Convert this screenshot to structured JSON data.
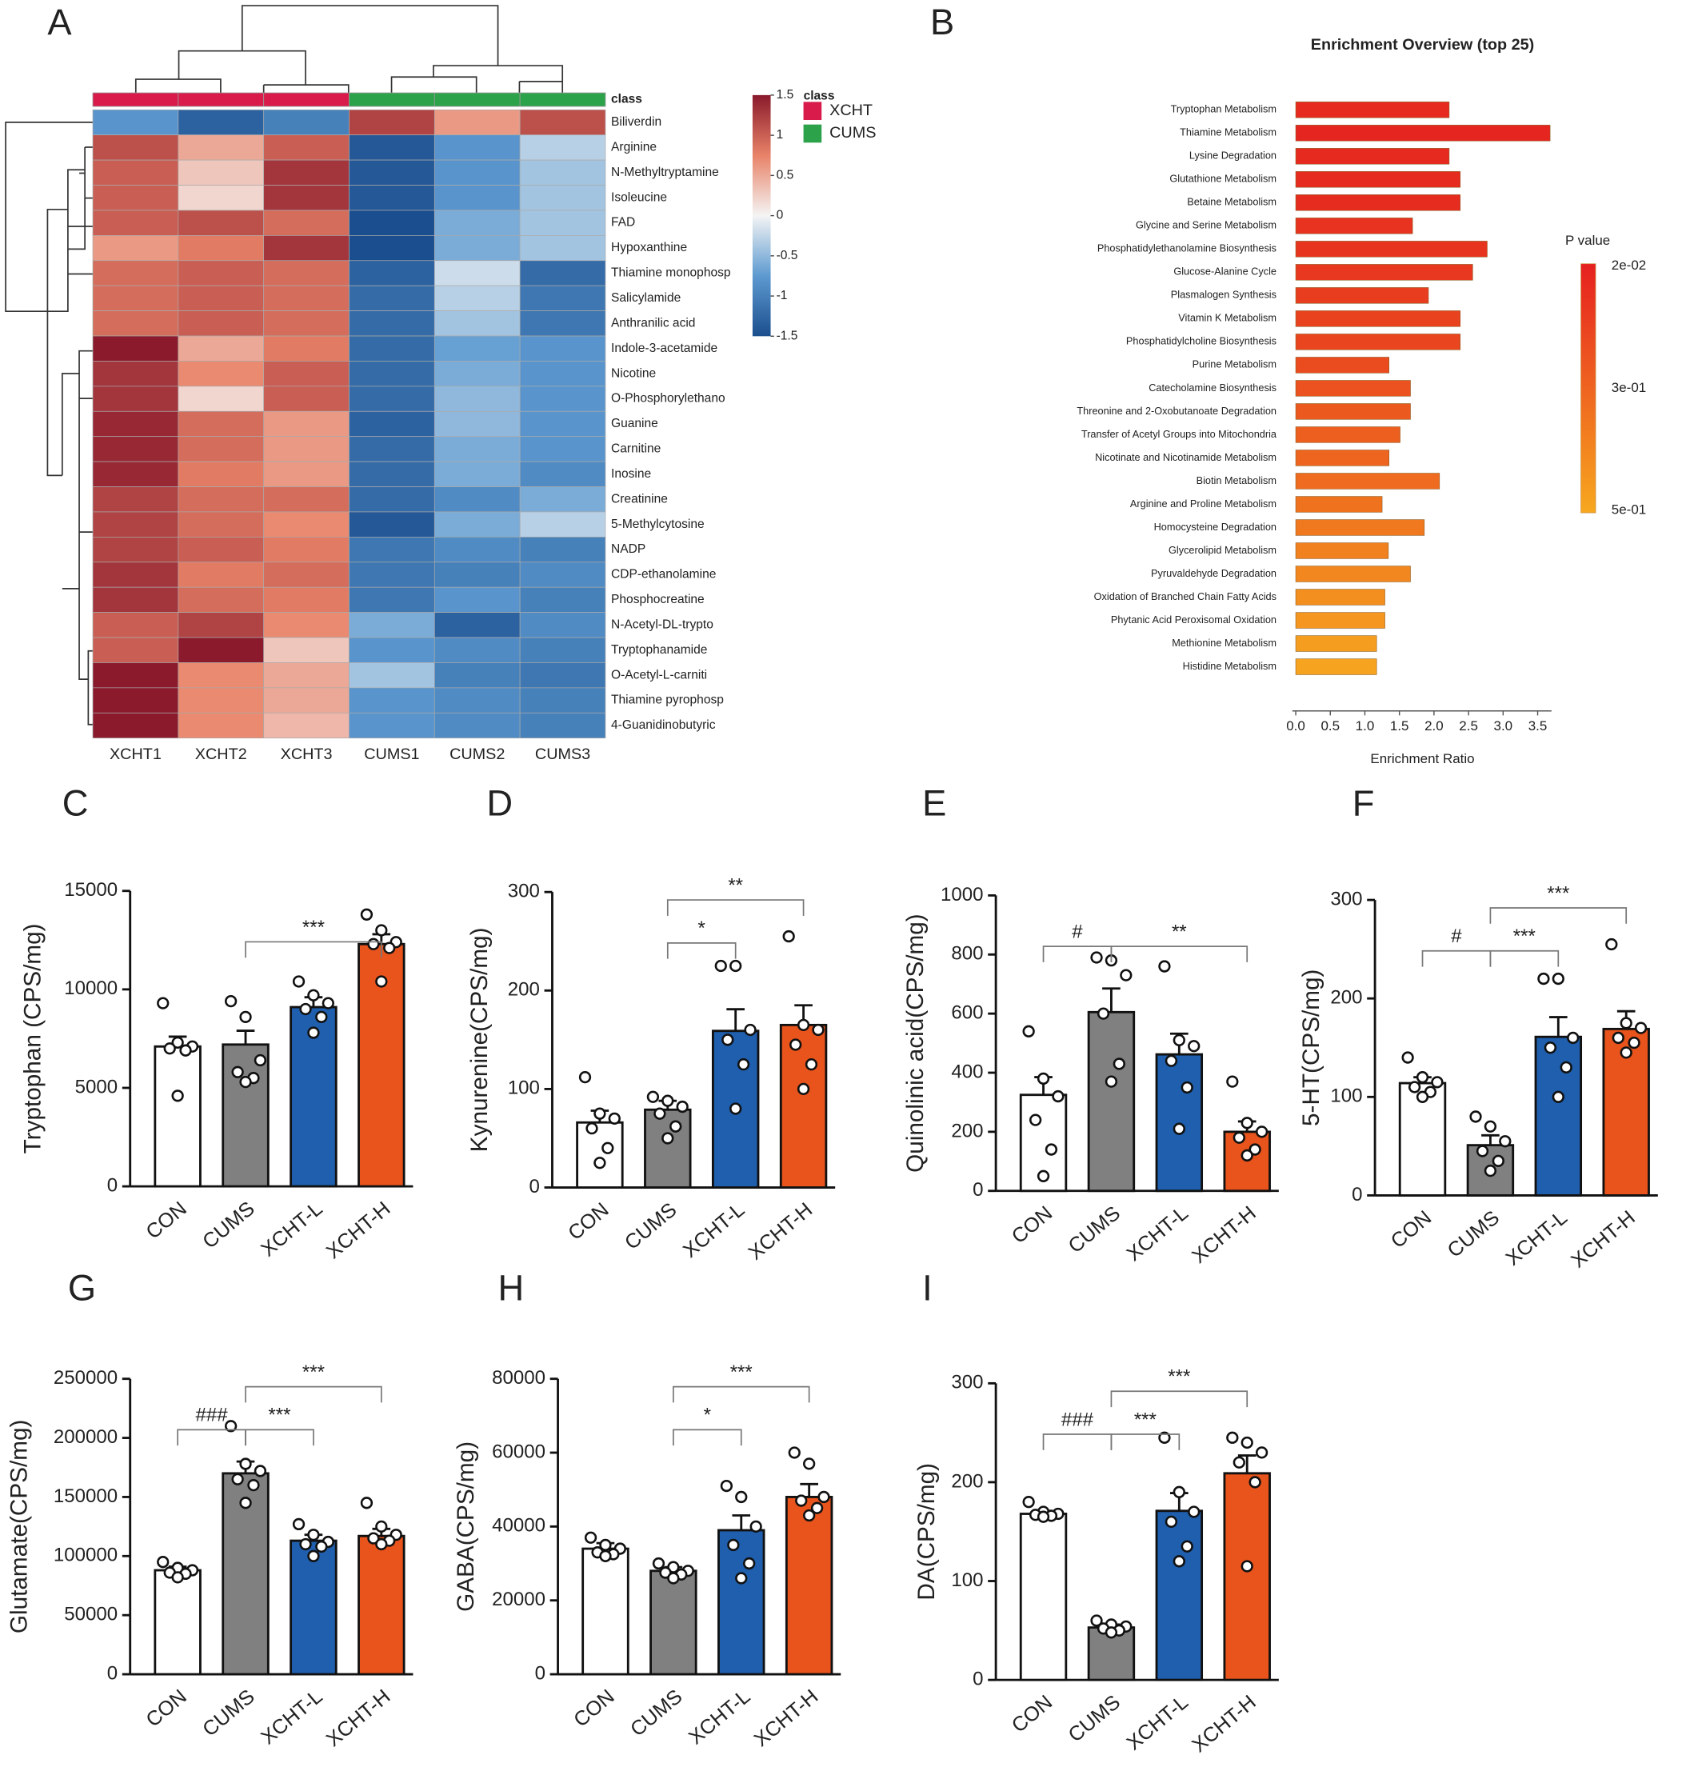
{
  "chart_data": [
    {
      "type": "heatmap",
      "panel": "A",
      "rows": [
        "Biliverdin",
        "Arginine",
        "N-Methyltryptamine",
        "Isoleucine",
        "FAD",
        "Hypoxanthine",
        "Thiamine monophosp",
        "Salicylamide",
        "Anthranilic acid",
        "Indole-3-acetamide",
        "Nicotine",
        "O-Phosphorylethano",
        "Guanine",
        "Carnitine",
        "Inosine",
        "Creatinine",
        "5-Methylcytosine",
        "NADP",
        "CDP-ethanolamine",
        "Phosphocreatine",
        "N-Acetyl-DL-trypto",
        "Tryptophanamide",
        "O-Acetyl-L-carniti",
        "Thiamine pyrophosp",
        "4-Guanidinobutyric"
      ],
      "columns": [
        "XCHT1",
        "XCHT2",
        "XCHT3",
        "CUMS1",
        "CUMS2",
        "CUMS3"
      ],
      "values": [
        [
          -0.8,
          -1.3,
          -1.0,
          1.2,
          0.6,
          1.1
        ],
        [
          1.1,
          0.5,
          1.0,
          -1.4,
          -0.8,
          -0.3
        ],
        [
          1.0,
          0.3,
          1.3,
          -1.4,
          -0.8,
          -0.4
        ],
        [
          1.0,
          0.2,
          1.3,
          -1.4,
          -0.8,
          -0.4
        ],
        [
          1.0,
          1.1,
          0.9,
          -1.5,
          -0.6,
          -0.4
        ],
        [
          0.6,
          0.8,
          1.3,
          -1.5,
          -0.6,
          -0.4
        ],
        [
          0.9,
          1.0,
          0.9,
          -1.3,
          -0.2,
          -1.2
        ],
        [
          0.9,
          1.0,
          0.9,
          -1.2,
          -0.3,
          -1.1
        ],
        [
          0.9,
          1.0,
          0.9,
          -1.2,
          -0.4,
          -1.1
        ],
        [
          1.5,
          0.5,
          0.8,
          -1.2,
          -0.7,
          -0.8
        ],
        [
          1.3,
          0.7,
          1.0,
          -1.2,
          -0.6,
          -0.8
        ],
        [
          1.3,
          0.2,
          1.0,
          -1.2,
          -0.5,
          -0.8
        ],
        [
          1.4,
          0.9,
          0.6,
          -1.3,
          -0.5,
          -0.8
        ],
        [
          1.4,
          0.9,
          0.6,
          -1.2,
          -0.6,
          -0.8
        ],
        [
          1.4,
          0.8,
          0.6,
          -1.2,
          -0.6,
          -0.9
        ],
        [
          1.2,
          0.9,
          0.9,
          -1.2,
          -0.9,
          -0.6
        ],
        [
          1.2,
          0.9,
          0.7,
          -1.4,
          -0.6,
          -0.3
        ],
        [
          1.2,
          1.0,
          0.8,
          -1.1,
          -0.9,
          -1.0
        ],
        [
          1.3,
          0.8,
          0.9,
          -1.1,
          -1.0,
          -0.9
        ],
        [
          1.3,
          0.9,
          0.8,
          -1.1,
          -0.8,
          -1.0
        ],
        [
          1.0,
          1.2,
          0.7,
          -0.6,
          -1.3,
          -0.9
        ],
        [
          1.0,
          1.5,
          0.3,
          -0.8,
          -0.9,
          -1.0
        ],
        [
          1.5,
          0.7,
          0.5,
          -0.4,
          -1.0,
          -1.1
        ],
        [
          1.5,
          0.7,
          0.5,
          -0.8,
          -0.9,
          -1.0
        ],
        [
          1.5,
          0.7,
          0.4,
          -0.8,
          -0.9,
          -1.0
        ]
      ],
      "class_label": "class",
      "column_classes": [
        "XCHT",
        "XCHT",
        "XCHT",
        "CUMS",
        "CUMS",
        "CUMS"
      ],
      "groups": [
        {
          "name": "XCHT",
          "color": "#d81b4a"
        },
        {
          "name": "CUMS",
          "color": "#2ca24b"
        }
      ],
      "zlim": [
        -1.5,
        1.5
      ],
      "zticks": [
        1.5,
        1,
        0.5,
        0,
        -0.5,
        -1,
        -1.5
      ],
      "colorscale": [
        "#1b4e8e",
        "#5d9ad0",
        "#f4f4f4",
        "#e88268",
        "#8a1a2c"
      ]
    },
    {
      "type": "barh",
      "panel": "B",
      "title": "Enrichment Overview (top 25)",
      "categories": [
        "Tryptophan Metabolism",
        "Thiamine Metabolism",
        "Lysine Degradation",
        "Glutathione Metabolism",
        "Betaine Metabolism",
        "Glycine and Serine Metabolism",
        "Phosphatidylethanolamine Biosynthesis",
        "Glucose-Alanine Cycle",
        "Plasmalogen Synthesis",
        "Vitamin K Metabolism",
        "Phosphatidylcholine Biosynthesis",
        "Purine Metabolism",
        "Catecholamine Biosynthesis",
        "Threonine and 2-Oxobutanoate Degradation",
        "Transfer of Acetyl Groups into Mitochondria",
        "Nicotinate and Nicotinamide Metabolism",
        "Biotin Metabolism",
        "Arginine and Proline Metabolism",
        "Homocysteine Degradation",
        "Glycerolipid Metabolism",
        "Pyruvaldehyde Degradation",
        "Oxidation of Branched Chain Fatty Acids",
        "Phytanic Acid Peroxisomal Oxidation",
        "Methionine Metabolism",
        "Histidine Metabolism"
      ],
      "values": [
        2.22,
        3.68,
        2.22,
        2.38,
        2.38,
        1.69,
        2.77,
        2.56,
        1.92,
        2.38,
        2.38,
        1.35,
        1.66,
        1.66,
        1.51,
        1.35,
        2.08,
        1.25,
        1.86,
        1.34,
        1.66,
        1.29,
        1.29,
        1.17,
        1.17
      ],
      "colors": [
        "#e62a1f",
        "#e52520",
        "#e62a1f",
        "#e62b1f",
        "#e62b1f",
        "#e7331f",
        "#e7341f",
        "#e8381f",
        "#e83d1f",
        "#e9421f",
        "#e9461f",
        "#ea4c1f",
        "#eb521f",
        "#ec591f",
        "#ec5f1f",
        "#ed651f",
        "#ee6b1f",
        "#ef721f",
        "#f0791f",
        "#f1801f",
        "#f2871f",
        "#f38f1f",
        "#f4961f",
        "#f59d1f",
        "#f6a41f"
      ],
      "xlim": [
        0,
        3.7
      ],
      "xticks": [
        {
          "value": 0,
          "label": "0.0"
        },
        0.5,
        {
          "value": 1,
          "label": "1.0"
        },
        1.5,
        {
          "value": 2,
          "label": "2.0"
        },
        2.5,
        {
          "value": 3,
          "label": "3.0"
        },
        3.5
      ],
      "xlabel": "Enrichment Ratio",
      "legend_title": "P value",
      "colorbar_labels": [
        "2e-02",
        "3e-01",
        "5e-01"
      ],
      "colorbar_colors": [
        "#e62020",
        "#f7a81f"
      ]
    },
    {
      "type": "bar_dots",
      "panel": "C",
      "ylabel": "Tryptophan  (CPS/mg)",
      "categories": [
        "CON",
        "CUMS",
        "XCHT-L",
        "XCHT-H"
      ],
      "colors": [
        "#ffffff",
        "#808080",
        "#1f5fad",
        "#e8541c"
      ],
      "values": [
        7100,
        7200,
        9100,
        12300
      ],
      "errors": [
        500,
        700,
        500,
        500
      ],
      "points": [
        [
          9300,
          7300,
          7100,
          7000,
          6900,
          4600
        ],
        [
          9400,
          8600,
          6400,
          5800,
          5500,
          5300
        ],
        [
          10400,
          9700,
          9300,
          9000,
          8600,
          7800
        ],
        [
          13800,
          13000,
          12400,
          12300,
          12100,
          10400
        ]
      ],
      "ylim": [
        0,
        15000
      ],
      "yticks": [
        0,
        5000,
        10000,
        15000
      ],
      "annotations": [
        {
          "label": "***",
          "between": [
            "CUMS",
            "XCHT-H"
          ]
        }
      ]
    },
    {
      "type": "bar_dots",
      "panel": "D",
      "ylabel": "Kynurenine(CPS/mg)",
      "categories": [
        "CON",
        "CUMS",
        "XCHT-L",
        "XCHT-H"
      ],
      "colors": [
        "#ffffff",
        "#808080",
        "#1f5fad",
        "#e8541c"
      ],
      "values": [
        66,
        79,
        159,
        165
      ],
      "errors": [
        12,
        9,
        22,
        20
      ],
      "points": [
        [
          112,
          75,
          70,
          60,
          40,
          25
        ],
        [
          92,
          88,
          82,
          75,
          62,
          50
        ],
        [
          225,
          225,
          160,
          150,
          125,
          80
        ],
        [
          255,
          165,
          160,
          145,
          125,
          100
        ]
      ],
      "ylim": [
        0,
        300
      ],
      "yticks": [
        0,
        100,
        200,
        300
      ],
      "annotations": [
        {
          "label": "*",
          "between": [
            "CUMS",
            "XCHT-L"
          ]
        },
        {
          "label": "**",
          "between": [
            "CUMS",
            "XCHT-H"
          ]
        }
      ]
    },
    {
      "type": "bar_dots",
      "panel": "E",
      "ylabel": "Quinolinic acid(CPS/mg)",
      "categories": [
        "CON",
        "CUMS",
        "XCHT-L",
        "XCHT-H"
      ],
      "colors": [
        "#ffffff",
        "#808080",
        "#1f5fad",
        "#e8541c"
      ],
      "values": [
        325,
        605,
        462,
        200
      ],
      "errors": [
        60,
        80,
        70,
        35
      ],
      "points": [
        [
          540,
          380,
          320,
          240,
          140,
          50
        ],
        [
          790,
          780,
          730,
          600,
          430,
          370
        ],
        [
          760,
          510,
          490,
          440,
          350,
          210
        ],
        [
          370,
          230,
          200,
          180,
          140,
          120
        ]
      ],
      "ylim": [
        0,
        1000
      ],
      "yticks": [
        0,
        200,
        400,
        600,
        800,
        1000
      ],
      "annotations": [
        {
          "label": "#",
          "between": [
            "CON",
            "CUMS"
          ]
        },
        {
          "label": "**",
          "between": [
            "CUMS",
            "XCHT-H"
          ]
        }
      ]
    },
    {
      "type": "bar_dots",
      "panel": "F",
      "ylabel": "5-HT(CPS/mg)",
      "categories": [
        "CON",
        "CUMS",
        "XCHT-L",
        "XCHT-H"
      ],
      "colors": [
        "#ffffff",
        "#808080",
        "#1f5fad",
        "#e8541c"
      ],
      "values": [
        114,
        51,
        161,
        169
      ],
      "errors": [
        6,
        10,
        20,
        18
      ],
      "points": [
        [
          140,
          120,
          115,
          110,
          105,
          100
        ],
        [
          80,
          70,
          55,
          45,
          35,
          25
        ],
        [
          220,
          220,
          160,
          150,
          130,
          100
        ],
        [
          255,
          175,
          170,
          160,
          155,
          145
        ]
      ],
      "ylim": [
        0,
        300
      ],
      "yticks": [
        0,
        100,
        200,
        300
      ],
      "annotations": [
        {
          "label": "#",
          "between": [
            "CON",
            "CUMS"
          ]
        },
        {
          "label": "***",
          "between": [
            "CUMS",
            "XCHT-L"
          ]
        },
        {
          "label": "***",
          "between": [
            "CUMS",
            "XCHT-H"
          ]
        }
      ]
    },
    {
      "type": "bar_dots",
      "panel": "G",
      "ylabel": "Glutamate(CPS/mg)",
      "categories": [
        "CON",
        "CUMS",
        "XCHT-L",
        "XCHT-H"
      ],
      "colors": [
        "#ffffff",
        "#808080",
        "#1f5fad",
        "#e8541c"
      ],
      "values": [
        88000,
        170000,
        113000,
        117000
      ],
      "errors": [
        3000,
        10000,
        5000,
        6000
      ],
      "points": [
        [
          95000,
          90000,
          88000,
          86000,
          85000,
          82000
        ],
        [
          210000,
          178000,
          172000,
          165000,
          160000,
          145000
        ],
        [
          127000,
          118000,
          112000,
          110000,
          108000,
          100000
        ],
        [
          145000,
          125000,
          118000,
          115000,
          113000,
          110000
        ]
      ],
      "ylim": [
        0,
        250000
      ],
      "yticks": [
        0,
        50000,
        100000,
        150000,
        200000,
        250000
      ],
      "annotations": [
        {
          "label": "###",
          "between": [
            "CON",
            "CUMS"
          ]
        },
        {
          "label": "***",
          "between": [
            "CUMS",
            "XCHT-L"
          ]
        },
        {
          "label": "***",
          "between": [
            "CUMS",
            "XCHT-H"
          ]
        }
      ]
    },
    {
      "type": "bar_dots",
      "panel": "H",
      "ylabel": "GABA(CPS/mg)",
      "categories": [
        "CON",
        "CUMS",
        "XCHT-L",
        "XCHT-H"
      ],
      "colors": [
        "#ffffff",
        "#808080",
        "#1f5fad",
        "#e8541c"
      ],
      "values": [
        34000,
        28000,
        39000,
        48000
      ],
      "errors": [
        1500,
        1000,
        4000,
        3500
      ],
      "points": [
        [
          37000,
          35000,
          34000,
          33000,
          32500,
          32000
        ],
        [
          30000,
          29000,
          28000,
          27500,
          27000,
          26000
        ],
        [
          51000,
          48000,
          40000,
          35000,
          30000,
          26000
        ],
        [
          60000,
          57000,
          48000,
          47000,
          45000,
          43000
        ]
      ],
      "ylim": [
        0,
        80000
      ],
      "yticks": [
        0,
        20000,
        40000,
        60000,
        80000
      ],
      "annotations": [
        {
          "label": "*",
          "between": [
            "CUMS",
            "XCHT-L"
          ]
        },
        {
          "label": "***",
          "between": [
            "CUMS",
            "XCHT-H"
          ]
        }
      ]
    },
    {
      "type": "bar_dots",
      "panel": "I",
      "ylabel": "DA(CPS/mg)",
      "categories": [
        "CON",
        "CUMS",
        "XCHT-L",
        "XCHT-H"
      ],
      "colors": [
        "#ffffff",
        "#808080",
        "#1f5fad",
        "#e8541c"
      ],
      "values": [
        168,
        53,
        171,
        209
      ],
      "errors": [
        3,
        3,
        18,
        18
      ],
      "points": [
        [
          180,
          170,
          168,
          167,
          166,
          165
        ],
        [
          60,
          56,
          54,
          52,
          50,
          48
        ],
        [
          245,
          190,
          170,
          160,
          135,
          120
        ],
        [
          245,
          240,
          230,
          220,
          200,
          115
        ]
      ],
      "ylim": [
        0,
        300
      ],
      "yticks": [
        0,
        100,
        200,
        300
      ],
      "annotations": [
        {
          "label": "###",
          "between": [
            "CON",
            "CUMS"
          ]
        },
        {
          "label": "***",
          "between": [
            "CUMS",
            "XCHT-L"
          ]
        },
        {
          "label": "***",
          "between": [
            "CUMS",
            "XCHT-H"
          ]
        }
      ]
    }
  ]
}
